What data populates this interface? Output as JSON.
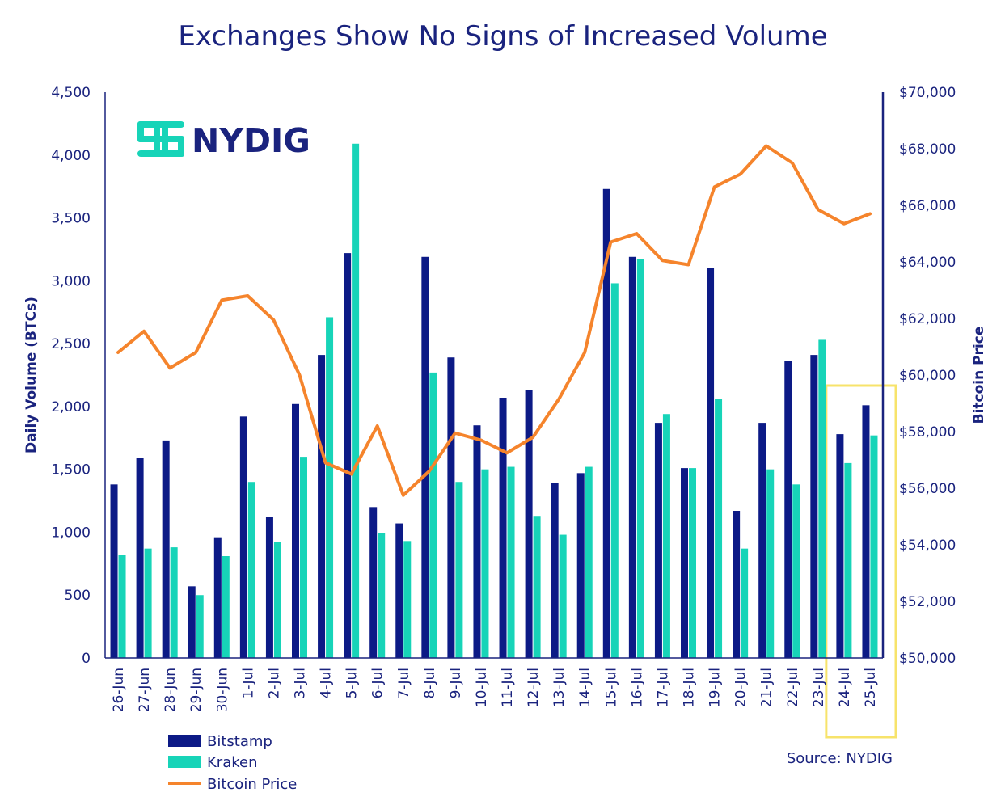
{
  "chart_data": {
    "type": "bar",
    "title": "Exchanges Show No Signs of Increased Volume",
    "ylabel": "Daily Volume (BTCs)",
    "y2label": "Bitcoin Price",
    "ylim": [
      0,
      4500
    ],
    "y2lim": [
      50000,
      70000
    ],
    "yticks": [
      "0",
      "500",
      "1,000",
      "1,500",
      "2,000",
      "2,500",
      "3,000",
      "3,500",
      "4,000",
      "4,500"
    ],
    "y2ticks": [
      "$50,000",
      "$52,000",
      "$54,000",
      "$56,000",
      "$58,000",
      "$60,000",
      "$62,000",
      "$64,000",
      "$66,000",
      "$68,000",
      "$70,000"
    ],
    "categories": [
      "26-Jun",
      "27-Jun",
      "28-Jun",
      "29-Jun",
      "30-Jun",
      "1-Jul",
      "2-Jul",
      "3-Jul",
      "4-Jul",
      "5-Jul",
      "6-Jul",
      "7-Jul",
      "8-Jul",
      "9-Jul",
      "10-Jul",
      "11-Jul",
      "12-Jul",
      "13-Jul",
      "14-Jul",
      "15-Jul",
      "16-Jul",
      "17-Jul",
      "18-Jul",
      "19-Jul",
      "20-Jul",
      "21-Jul",
      "22-Jul",
      "23-Jul",
      "24-Jul",
      "25-Jul"
    ],
    "series": [
      {
        "name": "Bitstamp",
        "kind": "bar",
        "axis": "left",
        "color": "#0c1a86",
        "values": [
          1380,
          1590,
          1730,
          570,
          960,
          1920,
          1120,
          2020,
          2410,
          3220,
          1200,
          1070,
          3190,
          2390,
          1850,
          2070,
          2130,
          1390,
          1470,
          3730,
          3190,
          1870,
          1510,
          3100,
          1170,
          1870,
          2360,
          2410,
          1780,
          2010
        ]
      },
      {
        "name": "Kraken",
        "kind": "bar",
        "axis": "left",
        "color": "#17d4b8",
        "values": [
          820,
          870,
          880,
          500,
          810,
          1400,
          920,
          1600,
          2710,
          4090,
          990,
          930,
          2270,
          1400,
          1500,
          1520,
          1130,
          980,
          1520,
          2980,
          3170,
          1940,
          1510,
          2060,
          870,
          1500,
          1380,
          2530,
          1550,
          1770
        ]
      },
      {
        "name": "Bitcoin Price",
        "kind": "line",
        "axis": "right",
        "color": "#f5842c",
        "values": [
          60800,
          61550,
          60250,
          60800,
          62650,
          62800,
          61950,
          60000,
          56900,
          56500,
          58200,
          55750,
          56600,
          57950,
          57700,
          57250,
          57800,
          59150,
          60800,
          64700,
          65000,
          64050,
          63900,
          66650,
          67100,
          68100,
          67500,
          65850,
          65350,
          65700
        ]
      }
    ],
    "legend_position": "bottom-left",
    "highlight": {
      "categories": [
        "24-Jul",
        "25-Jul"
      ],
      "color": "#f7e36b"
    },
    "source": "Source: NYDIG",
    "logo": "NYDIG",
    "grid": false
  }
}
